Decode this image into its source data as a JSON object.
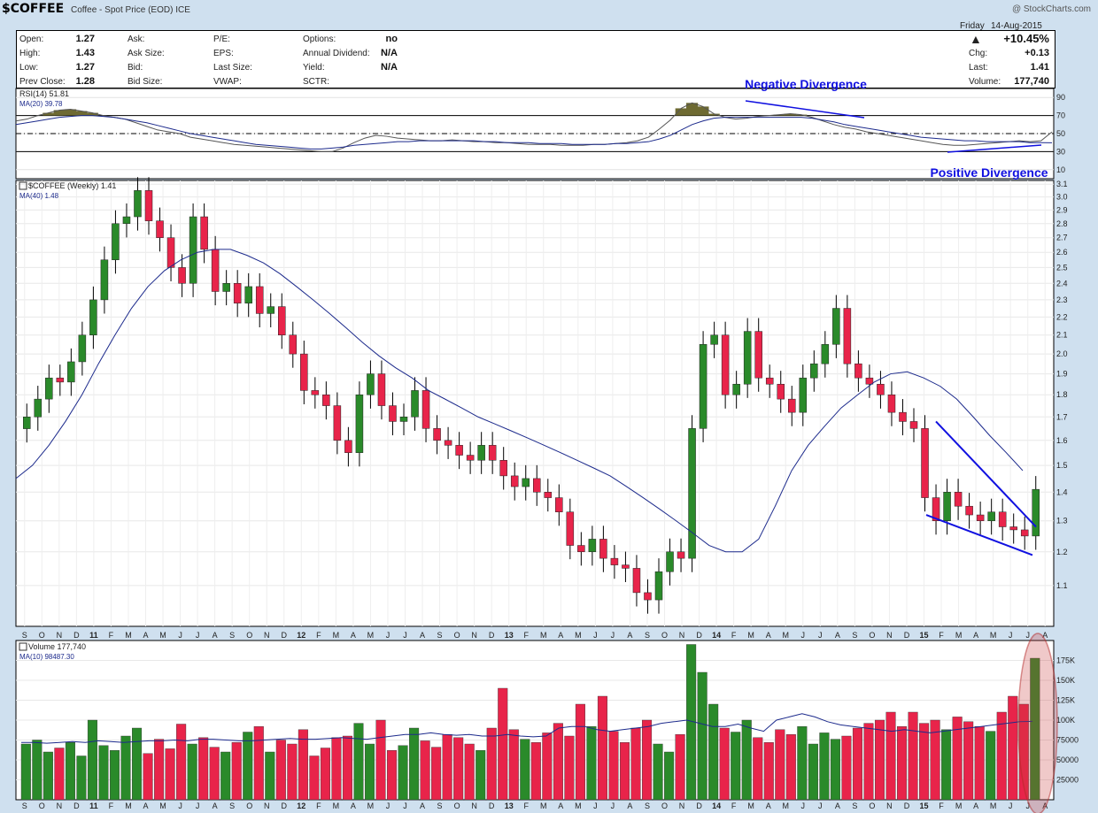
{
  "header": {
    "symbol": "$COFFEE",
    "name": "Coffee - Spot Price (EOD)",
    "exchange": "ICE",
    "credit": "@ StockCharts.com"
  },
  "quote": {
    "day": "Friday",
    "date": "14-Aug-2015",
    "pct_change": "+10.45%",
    "up_arrow_color": "#1a8f1a",
    "labels": {
      "open": "Open:",
      "high": "High:",
      "low": "Low:",
      "prev_close": "Prev Close:",
      "ask": "Ask:",
      "ask_size": "Ask Size:",
      "bid": "Bid:",
      "bid_size": "Bid Size:",
      "pe": "P/E:",
      "eps": "EPS:",
      "last_size": "Last Size:",
      "vwap": "VWAP:",
      "options": "Options:",
      "annual_dividend": "Annual Dividend:",
      "yield": "Yield:",
      "sctr": "SCTR:",
      "chg": "Chg:",
      "last": "Last:",
      "volume": "Volume:"
    },
    "values": {
      "open": "1.27",
      "high": "1.43",
      "low": "1.27",
      "prev_close": "1.28",
      "options": "no",
      "annual_dividend": "N/A",
      "yield": "N/A",
      "chg": "+0.13",
      "last": "1.41",
      "volume": "177,740"
    }
  },
  "chart_data": [
    {
      "type": "line",
      "panel": "rsi",
      "legend": [
        "RSI(14) 51.81",
        "MA(20) 39.78"
      ],
      "ylim": [
        0,
        100
      ],
      "ticks": [
        10,
        30,
        50,
        70,
        90
      ],
      "annotations": [
        "Negative Divergence",
        "Positive Divergence"
      ],
      "series": [
        {
          "name": "RSI(14)",
          "values": [
            64,
            66,
            70,
            73,
            76,
            77,
            75,
            73,
            70,
            68,
            66,
            62,
            58,
            54,
            52,
            50,
            46,
            44,
            42,
            40,
            38,
            37,
            36,
            35,
            34,
            33,
            32,
            31,
            30,
            30,
            34,
            40,
            45,
            48,
            47,
            45,
            44,
            43,
            42,
            42,
            43,
            42,
            41,
            41,
            40,
            40,
            39,
            38,
            38,
            38,
            37,
            37,
            37,
            38,
            38,
            39,
            40,
            42,
            46,
            55,
            65,
            78,
            84,
            80,
            72,
            68,
            66,
            67,
            69,
            70,
            71,
            72,
            71,
            68,
            64,
            60,
            57,
            55,
            52,
            50,
            48,
            46,
            44,
            42,
            40,
            38,
            37,
            37,
            38,
            39,
            40,
            41,
            42,
            41,
            42,
            51.81
          ]
        },
        {
          "name": "MA(20)",
          "values": [
            60,
            62,
            64,
            66,
            68,
            69,
            70,
            70,
            69,
            68,
            66,
            64,
            62,
            59,
            56,
            53,
            50,
            48,
            46,
            44,
            42,
            40,
            38,
            37,
            36,
            35,
            34,
            33,
            33,
            34,
            35,
            37,
            38,
            39,
            40,
            41,
            41,
            42,
            42,
            42,
            42,
            42,
            42,
            41,
            41,
            40,
            40,
            40,
            39,
            39,
            39,
            38,
            38,
            38,
            38,
            39,
            39,
            40,
            41,
            44,
            48,
            54,
            60,
            64,
            67,
            68,
            68,
            68,
            68,
            68,
            68,
            68,
            68,
            67,
            65,
            63,
            60,
            58,
            56,
            54,
            52,
            50,
            48,
            46,
            45,
            44,
            43,
            42,
            42,
            41,
            41,
            41,
            41,
            40,
            40,
            39.78
          ]
        }
      ]
    },
    {
      "type": "candlestick",
      "panel": "price",
      "legend": [
        "$COFFEE (Weekly) 1.41",
        "MA(40) 1.48"
      ],
      "ylim": [
        1.0,
        3.1
      ],
      "scale": "log",
      "ticks": [
        1.1,
        1.2,
        1.3,
        1.4,
        1.5,
        1.6,
        1.7,
        1.8,
        1.9,
        2.0,
        2.1,
        2.2,
        2.3,
        2.4,
        2.5,
        2.6,
        2.7,
        2.8,
        2.9,
        3.0,
        3.1
      ],
      "x_ticks": [
        "S",
        "O",
        "N",
        "D",
        "11",
        "F",
        "M",
        "A",
        "M",
        "J",
        "J",
        "A",
        "S",
        "O",
        "N",
        "D",
        "12",
        "F",
        "M",
        "A",
        "M",
        "J",
        "J",
        "A",
        "S",
        "O",
        "N",
        "D",
        "13",
        "F",
        "M",
        "A",
        "M",
        "J",
        "J",
        "A",
        "S",
        "O",
        "N",
        "D",
        "14",
        "F",
        "M",
        "A",
        "M",
        "J",
        "J",
        "A",
        "S",
        "O",
        "N",
        "D",
        "15",
        "F",
        "M",
        "A",
        "M",
        "J",
        "J",
        "A"
      ],
      "closes": [
        1.7,
        1.78,
        1.88,
        1.86,
        1.96,
        2.1,
        2.3,
        2.55,
        2.8,
        2.85,
        3.05,
        2.82,
        2.7,
        2.5,
        2.4,
        2.85,
        2.62,
        2.35,
        2.4,
        2.28,
        2.38,
        2.22,
        2.26,
        2.1,
        2.0,
        1.82,
        1.8,
        1.75,
        1.6,
        1.55,
        1.8,
        1.9,
        1.75,
        1.68,
        1.7,
        1.82,
        1.65,
        1.6,
        1.58,
        1.54,
        1.52,
        1.58,
        1.52,
        1.46,
        1.42,
        1.45,
        1.4,
        1.38,
        1.33,
        1.22,
        1.2,
        1.24,
        1.18,
        1.16,
        1.15,
        1.08,
        1.06,
        1.14,
        1.2,
        1.18,
        1.65,
        2.05,
        2.1,
        1.8,
        1.85,
        2.12,
        1.88,
        1.85,
        1.78,
        1.72,
        1.88,
        1.95,
        2.05,
        2.25,
        1.95,
        1.88,
        1.85,
        1.8,
        1.72,
        1.68,
        1.65,
        1.38,
        1.3,
        1.4,
        1.35,
        1.32,
        1.3,
        1.33,
        1.28,
        1.27,
        1.25,
        1.41
      ],
      "ma40": [
        1.45,
        1.5,
        1.58,
        1.68,
        1.8,
        1.95,
        2.1,
        2.25,
        2.38,
        2.48,
        2.55,
        2.6,
        2.62,
        2.62,
        2.58,
        2.53,
        2.46,
        2.38,
        2.3,
        2.22,
        2.14,
        2.06,
        1.99,
        1.93,
        1.88,
        1.82,
        1.78,
        1.74,
        1.7,
        1.67,
        1.64,
        1.61,
        1.58,
        1.55,
        1.52,
        1.49,
        1.46,
        1.42,
        1.38,
        1.34,
        1.3,
        1.26,
        1.22,
        1.2,
        1.2,
        1.24,
        1.35,
        1.48,
        1.58,
        1.66,
        1.74,
        1.8,
        1.86,
        1.9,
        1.91,
        1.88,
        1.84,
        1.78,
        1.7,
        1.62,
        1.55,
        1.48
      ]
    },
    {
      "type": "bar",
      "panel": "volume",
      "legend": [
        "Volume 177,740",
        "MA(10) 98487.30"
      ],
      "ylim": [
        0,
        200000
      ],
      "ticks": [
        25000,
        50000,
        75000,
        100000,
        125000,
        150000,
        175000
      ],
      "tick_labels": [
        "25000",
        "50000",
        "75000",
        "100K",
        "125K",
        "150K",
        "175K"
      ],
      "values": [
        70000,
        75000,
        60000,
        65000,
        72000,
        55000,
        100000,
        68000,
        62000,
        80000,
        90000,
        58000,
        76000,
        64000,
        95000,
        70000,
        78000,
        66000,
        60000,
        72000,
        85000,
        92000,
        60000,
        75000,
        70000,
        88000,
        55000,
        65000,
        78000,
        80000,
        96000,
        70000,
        100000,
        62000,
        68000,
        90000,
        74000,
        66000,
        82000,
        78000,
        70000,
        62000,
        90000,
        140000,
        88000,
        76000,
        72000,
        84000,
        96000,
        80000,
        120000,
        92000,
        130000,
        86000,
        72000,
        90000,
        100000,
        70000,
        60000,
        82000,
        195000,
        160000,
        120000,
        90000,
        85000,
        100000,
        78000,
        72000,
        88000,
        82000,
        92000,
        70000,
        84000,
        76000,
        80000,
        90000,
        96000,
        100000,
        110000,
        92000,
        110000,
        96000,
        100000,
        88000,
        104000,
        98000,
        92000,
        86000,
        110000,
        130000,
        120000,
        177740
      ],
      "ma10": [
        72000,
        72000,
        71000,
        72000,
        73000,
        72000,
        74000,
        73000,
        72000,
        73000,
        74000,
        74000,
        75000,
        74000,
        76000,
        76000,
        75000,
        74000,
        74000,
        75000,
        76000,
        77000,
        76000,
        76000,
        77000,
        78000,
        77000,
        76000,
        78000,
        80000,
        82000,
        82000,
        84000,
        82000,
        81000,
        82000,
        80000,
        80000,
        82000,
        80000,
        79000,
        80000,
        90000,
        92000,
        92000,
        88000,
        86000,
        88000,
        90000,
        92000,
        96000,
        98000,
        100000,
        96000,
        92000,
        92000,
        95000,
        90000,
        86000,
        100000,
        104000,
        108000,
        104000,
        98000,
        94000,
        92000,
        90000,
        88000,
        86000,
        88000,
        86000,
        84000,
        86000,
        88000,
        90000,
        92000,
        94000,
        96000,
        98000,
        98487.3
      ]
    }
  ],
  "colors": {
    "up": "#2a8a2a",
    "down": "#e8244a",
    "ma": "#1c2a8c",
    "divergence": "#1010e0",
    "rsi_fill": "#6e6a32"
  }
}
